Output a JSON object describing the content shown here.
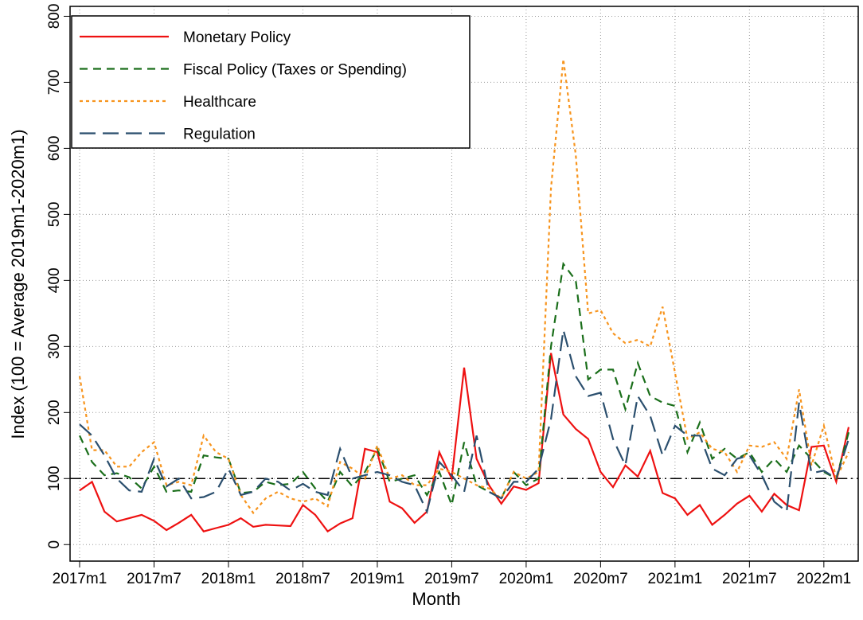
{
  "chart_data": {
    "type": "line",
    "x_label": "Month",
    "y_label": "Index (100 = Average 2019m1-2020m1)",
    "categories": [
      "2017m1",
      null,
      null,
      null,
      null,
      null,
      "2017m7",
      null,
      null,
      null,
      null,
      null,
      "2018m1",
      null,
      null,
      null,
      null,
      null,
      "2018m7",
      null,
      null,
      null,
      null,
      null,
      "2019m1",
      null,
      null,
      null,
      null,
      null,
      "2019m7",
      null,
      null,
      null,
      null,
      null,
      "2020m1",
      null,
      null,
      null,
      null,
      null,
      "2020m7",
      null,
      null,
      null,
      null,
      null,
      "2021m1",
      null,
      null,
      null,
      null,
      null,
      "2021m7",
      null,
      null,
      null,
      null,
      null,
      "2022m1",
      null,
      null
    ],
    "ylim": [
      -25,
      815
    ],
    "yticks": [
      0,
      100,
      200,
      300,
      400,
      500,
      600,
      700,
      800
    ],
    "grid": true,
    "reference_line": 100,
    "legend": "top-left",
    "series": [
      {
        "name": "Monetary Policy",
        "color": "#ee1111",
        "dash": "none",
        "values": [
          82,
          95,
          50,
          35,
          40,
          45,
          36,
          22,
          33,
          45,
          20,
          25,
          30,
          40,
          27,
          30,
          29,
          28,
          60,
          45,
          20,
          32,
          40,
          145,
          140,
          65,
          55,
          33,
          50,
          140,
          100,
          268,
          130,
          90,
          62,
          88,
          83,
          93,
          290,
          197,
          175,
          160,
          110,
          87,
          120,
          103,
          142,
          78,
          70,
          45,
          60,
          30,
          45,
          62,
          74,
          50,
          77,
          60,
          52,
          148,
          150,
          95,
          178
        ]
      },
      {
        "name": "Fiscal Policy (Taxes or Spending)",
        "color": "#1a6e1a",
        "dash": "10,7",
        "values": [
          165,
          125,
          105,
          108,
          102,
          85,
          118,
          80,
          82,
          80,
          135,
          132,
          130,
          78,
          80,
          95,
          90,
          92,
          110,
          85,
          65,
          110,
          88,
          110,
          145,
          95,
          100,
          105,
          75,
          110,
          60,
          155,
          90,
          80,
          70,
          110,
          90,
          100,
          300,
          425,
          400,
          250,
          265,
          265,
          205,
          275,
          225,
          215,
          210,
          140,
          185,
          130,
          145,
          130,
          140,
          110,
          130,
          110,
          150,
          130,
          110,
          100,
          170
        ]
      },
      {
        "name": "Healthcare",
        "color": "#f7941d",
        "dash": "4,4",
        "values": [
          255,
          143,
          143,
          118,
          118,
          140,
          155,
          90,
          95,
          90,
          165,
          140,
          130,
          75,
          48,
          70,
          80,
          70,
          65,
          70,
          58,
          125,
          115,
          100,
          150,
          100,
          105,
          90,
          90,
          115,
          110,
          100,
          90,
          85,
          70,
          110,
          100,
          110,
          540,
          735,
          590,
          350,
          355,
          320,
          305,
          310,
          300,
          360,
          260,
          160,
          170,
          145,
          140,
          110,
          150,
          148,
          155,
          130,
          235,
          120,
          180,
          100,
          140
        ]
      },
      {
        "name": "Regulation",
        "color": "#2b4f6e",
        "dash": "20,9",
        "values": [
          182,
          165,
          135,
          100,
          82,
          80,
          130,
          88,
          100,
          70,
          72,
          80,
          115,
          75,
          80,
          100,
          95,
          82,
          92,
          80,
          75,
          145,
          100,
          105,
          110,
          105,
          95,
          90,
          50,
          125,
          105,
          80,
          165,
          80,
          70,
          95,
          95,
          115,
          190,
          325,
          255,
          225,
          230,
          160,
          120,
          225,
          195,
          135,
          180,
          165,
          165,
          115,
          105,
          130,
          135,
          105,
          65,
          50,
          215,
          108,
          112,
          100,
          160
        ]
      }
    ]
  }
}
